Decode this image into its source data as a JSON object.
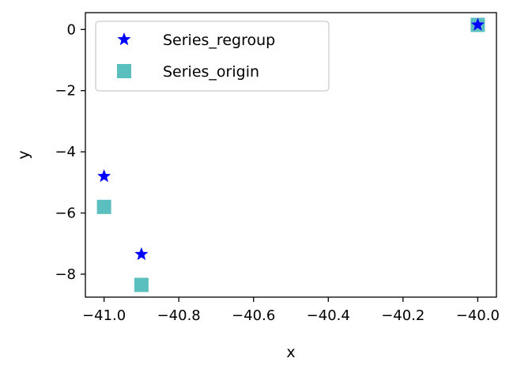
{
  "chart_data": {
    "type": "scatter",
    "xlabel": "x",
    "ylabel": "y",
    "xlim": [
      -41.05,
      -39.95
    ],
    "ylim": [
      -8.75,
      0.55
    ],
    "x_ticks": [
      -41.0,
      -40.8,
      -40.6,
      -40.4,
      -40.2,
      -40.0
    ],
    "x_tick_labels": [
      "−41.0",
      "−40.8",
      "−40.6",
      "−40.4",
      "−40.2",
      "−40.0"
    ],
    "y_ticks": [
      0,
      -2,
      -4,
      -6,
      -8
    ],
    "y_tick_labels": [
      "0",
      "−2",
      "−4",
      "−6",
      "−8"
    ],
    "grid": false,
    "legend_position": "upper left",
    "series": [
      {
        "name": "Series_regroup",
        "marker": "star",
        "color": "#0000ff",
        "x": [
          -41.0,
          -40.9,
          -40.0
        ],
        "y": [
          -4.8,
          -7.35,
          0.15
        ]
      },
      {
        "name": "Series_origin",
        "marker": "square",
        "color": "#5bbfc0",
        "x": [
          -41.0,
          -40.9,
          -40.0
        ],
        "y": [
          -5.8,
          -8.35,
          0.15
        ]
      }
    ]
  }
}
